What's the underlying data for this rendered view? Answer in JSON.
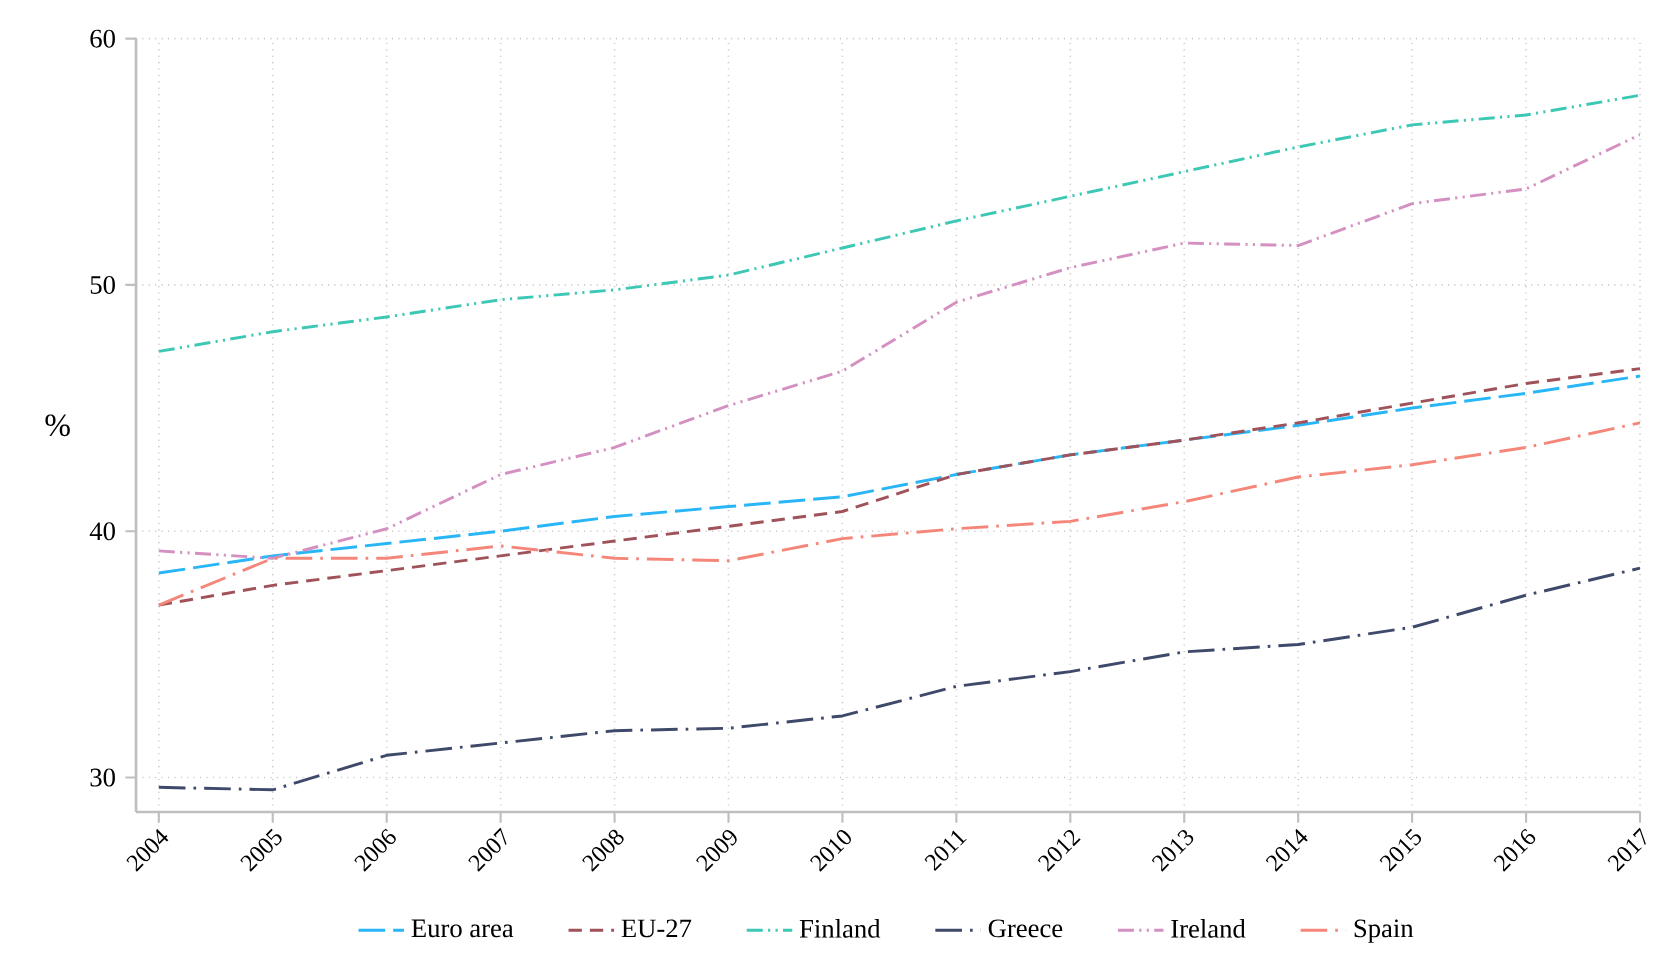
{
  "chart_data": {
    "type": "line",
    "ylabel": "%",
    "x": [
      2004,
      2005,
      2006,
      2007,
      2008,
      2009,
      2010,
      2011,
      2012,
      2013,
      2014,
      2015,
      2016,
      2017
    ],
    "xlim": [
      2003.8,
      2017
    ],
    "xticks": [
      2004,
      2005,
      2006,
      2007,
      2008,
      2009,
      2010,
      2011,
      2012,
      2013,
      2014,
      2015,
      2016,
      2017
    ],
    "ylim": [
      28.6,
      60
    ],
    "yticks": [
      30,
      40,
      50,
      60
    ],
    "grid": true,
    "legend": "bottom",
    "series": [
      {
        "name": "Euro area",
        "color": "#29b6f6",
        "line_style": "longdash",
        "values": [
          38.3,
          39.0,
          39.5,
          40.0,
          40.6,
          41.0,
          41.4,
          42.3,
          43.1,
          43.7,
          44.3,
          45.0,
          45.6,
          46.3
        ]
      },
      {
        "name": "EU-27",
        "color": "#a0525a",
        "line_style": "dashed",
        "values": [
          37.0,
          37.8,
          38.4,
          39.0,
          39.6,
          40.2,
          40.8,
          42.3,
          43.1,
          43.7,
          44.4,
          45.2,
          46.0,
          46.6
        ]
      },
      {
        "name": "Finland",
        "color": "#3cc8b4",
        "line_style": "dashdotdot",
        "values": [
          47.3,
          48.1,
          48.7,
          49.4,
          49.8,
          50.4,
          51.5,
          52.6,
          53.6,
          54.6,
          55.6,
          56.5,
          56.9,
          57.7
        ]
      },
      {
        "name": "Greece",
        "color": "#3f4a6b",
        "line_style": "longdashdot",
        "values": [
          29.6,
          29.5,
          30.9,
          31.4,
          31.9,
          32.0,
          32.5,
          33.7,
          34.3,
          35.1,
          35.4,
          36.1,
          37.4,
          38.5
        ]
      },
      {
        "name": "Ireland",
        "color": "#d490c0",
        "line_style": "dashdotdot",
        "values": [
          39.2,
          38.9,
          40.1,
          42.3,
          43.4,
          45.1,
          46.5,
          49.3,
          50.7,
          51.7,
          51.6,
          53.3,
          53.9,
          56.1
        ]
      },
      {
        "name": "Spain",
        "color": "#f5877a",
        "line_style": "longdashdot",
        "values": [
          37.0,
          38.9,
          38.9,
          39.4,
          38.9,
          38.8,
          39.7,
          40.1,
          40.4,
          41.2,
          42.2,
          42.7,
          43.4,
          44.4
        ]
      }
    ]
  }
}
